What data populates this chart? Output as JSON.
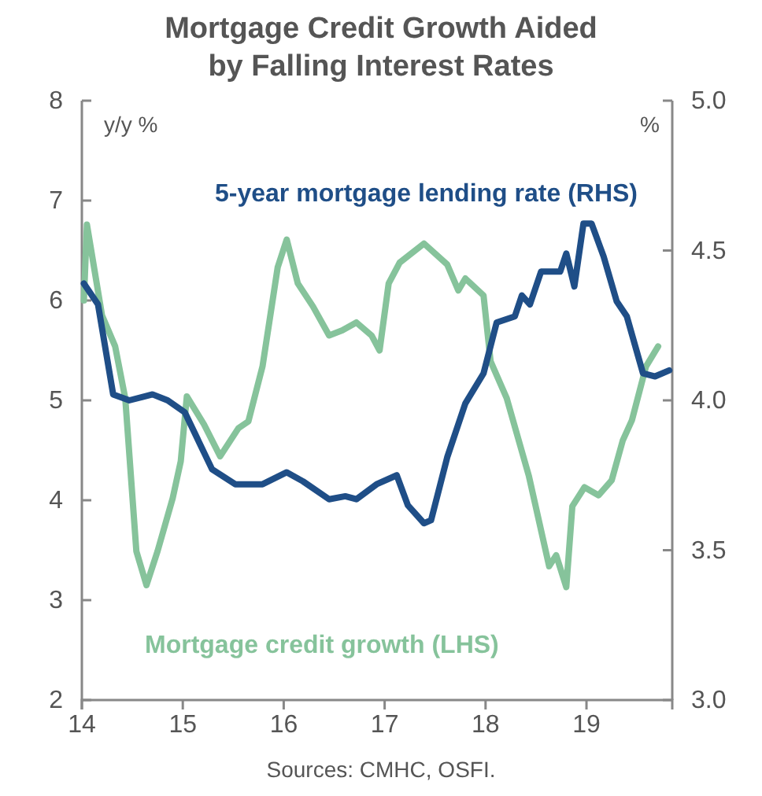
{
  "chart_data": {
    "type": "line",
    "title": "Mortgage Credit Growth Aided by Falling Interest Rates",
    "ylabel": "y/y %",
    "y2label": "%",
    "annotations": [
      "Sources: CMHC, OSFI."
    ],
    "xlim": [
      2014,
      2019.85
    ],
    "xticks": [
      {
        "value": 2014,
        "label": "14"
      },
      {
        "value": 2015,
        "label": "15"
      },
      {
        "value": 2016,
        "label": "16"
      },
      {
        "value": 2017,
        "label": "17"
      },
      {
        "value": 2018,
        "label": "18"
      },
      {
        "value": 2019,
        "label": "19"
      }
    ],
    "ylim": [
      2,
      8
    ],
    "yticks": [
      2,
      3,
      4,
      5,
      6,
      7,
      8
    ],
    "y2lim": [
      3,
      5
    ],
    "y2ticks": [
      {
        "value": 3,
        "label": "3.0"
      },
      {
        "value": 3.5,
        "label": "3.5"
      },
      {
        "value": 4,
        "label": "4.0"
      },
      {
        "value": 4.5,
        "label": "4.5"
      },
      {
        "value": 5,
        "label": "5.0"
      }
    ],
    "series": [
      {
        "name": "Mortgage credit growth (LHS)",
        "color": "#86c39b",
        "x": [
          2014.02,
          2014.05,
          2014.2,
          2014.33,
          2014.43,
          2014.54,
          2014.64,
          2014.75,
          2014.9,
          2014.98,
          2015.04,
          2015.21,
          2015.37,
          2015.55,
          2015.65,
          2015.79,
          2015.94,
          2016.03,
          2016.14,
          2016.29,
          2016.45,
          2016.58,
          2016.72,
          2016.87,
          2016.95,
          2017.04,
          2017.15,
          2017.39,
          2017.62,
          2017.73,
          2017.8,
          2017.98,
          2018.05,
          2018.21,
          2018.43,
          2018.63,
          2018.7,
          2018.8,
          2018.86,
          2018.98,
          2019.12,
          2019.25,
          2019.36,
          2019.45,
          2019.59,
          2019.71
        ],
        "values": [
          6.0,
          6.76,
          5.85,
          5.54,
          5.02,
          3.49,
          3.15,
          3.49,
          4.02,
          4.39,
          5.04,
          4.76,
          4.44,
          4.72,
          4.79,
          5.34,
          6.33,
          6.61,
          6.17,
          5.94,
          5.65,
          5.7,
          5.78,
          5.65,
          5.5,
          6.17,
          6.38,
          6.57,
          6.36,
          6.1,
          6.22,
          6.05,
          5.39,
          5.02,
          4.24,
          3.34,
          3.45,
          3.13,
          3.94,
          4.13,
          4.05,
          4.2,
          4.6,
          4.8,
          5.34,
          5.54
        ]
      },
      {
        "name": "5-year mortgage lending rate (RHS)",
        "color": "#1f4e87",
        "axis": "y2",
        "x": [
          2014.02,
          2014.16,
          2014.31,
          2014.47,
          2014.7,
          2014.85,
          2015.02,
          2015.29,
          2015.52,
          2015.79,
          2016.03,
          2016.19,
          2016.45,
          2016.61,
          2016.72,
          2016.92,
          2017.12,
          2017.23,
          2017.39,
          2017.46,
          2017.62,
          2017.8,
          2017.98,
          2018.11,
          2018.29,
          2018.36,
          2018.44,
          2018.55,
          2018.74,
          2018.8,
          2018.88,
          2018.97,
          2019.05,
          2019.17,
          2019.3,
          2019.4,
          2019.56,
          2019.68,
          2019.82
        ],
        "values": [
          4.39,
          4.32,
          4.02,
          4.0,
          4.02,
          4.0,
          3.96,
          3.77,
          3.72,
          3.72,
          3.76,
          3.73,
          3.67,
          3.68,
          3.67,
          3.72,
          3.75,
          3.65,
          3.59,
          3.6,
          3.81,
          3.99,
          4.09,
          4.26,
          4.28,
          4.35,
          4.32,
          4.43,
          4.43,
          4.49,
          4.38,
          4.59,
          4.59,
          4.48,
          4.33,
          4.28,
          4.09,
          4.08,
          4.1
        ]
      }
    ]
  }
}
